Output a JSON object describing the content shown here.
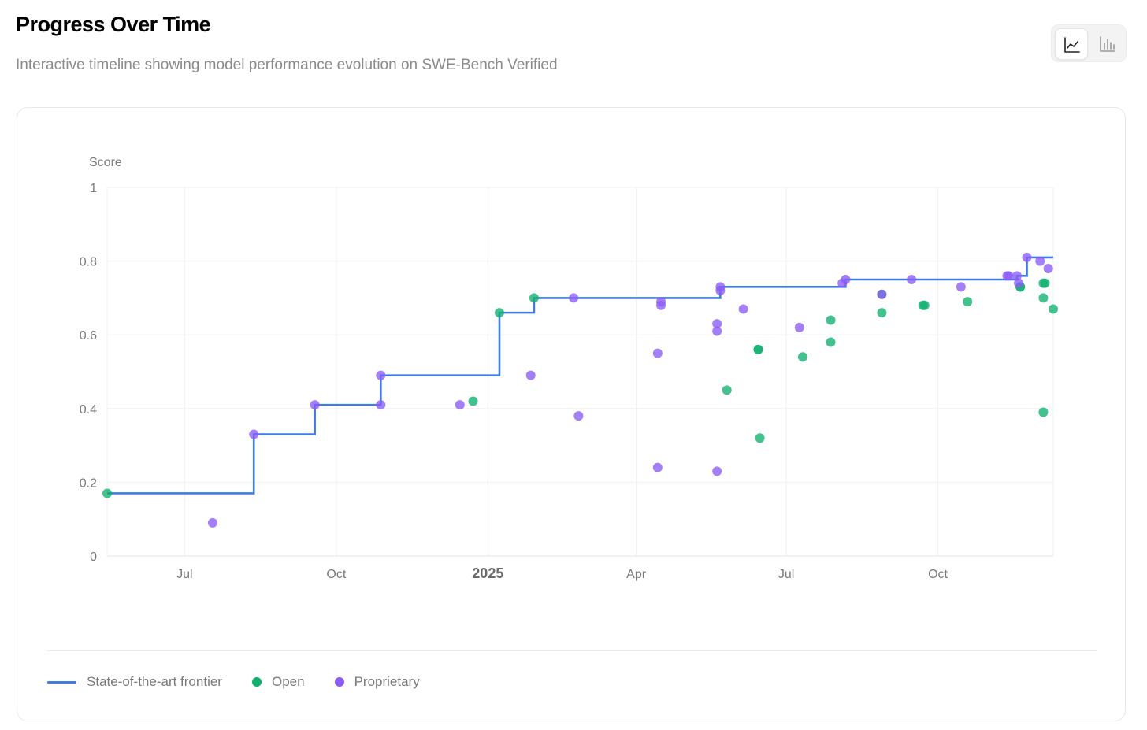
{
  "header": {
    "title": "Progress Over Time",
    "subtitle": "Interactive timeline showing model performance evolution on SWE-Bench Verified"
  },
  "view_toggle": {
    "options": [
      {
        "icon": "line-chart-icon",
        "selected": true
      },
      {
        "icon": "bar-chart-icon",
        "selected": false
      }
    ]
  },
  "colors": {
    "frontier": "#3f7de0",
    "open": "#10b06f",
    "proprietary": "#8b5cf6"
  },
  "legend": {
    "frontier": "State-of-the-art frontier",
    "open": "Open",
    "proprietary": "Proprietary"
  },
  "chart_data": {
    "type": "scatter",
    "ylabel": "Score",
    "ylim": [
      0,
      1
    ],
    "yticks": [
      0,
      0.2,
      0.4,
      0.6,
      0.8,
      1
    ],
    "xlim": [
      "2024-05-15",
      "2025-12-10"
    ],
    "xticks": [
      {
        "date": "2024-07-01",
        "label": "Jul",
        "bold": false
      },
      {
        "date": "2024-10-01",
        "label": "Oct",
        "bold": false
      },
      {
        "date": "2025-01-01",
        "label": "2025",
        "bold": true
      },
      {
        "date": "2025-04-01",
        "label": "Apr",
        "bold": false
      },
      {
        "date": "2025-07-01",
        "label": "Jul",
        "bold": false
      },
      {
        "date": "2025-10-01",
        "label": "Oct",
        "bold": false
      }
    ],
    "grid": true,
    "legend_position": "bottom-left",
    "series": [
      {
        "name": "Open",
        "color_key": "open",
        "points": [
          {
            "x": "2024-05-15",
            "y": 0.17
          },
          {
            "x": "2024-12-23",
            "y": 0.42
          },
          {
            "x": "2025-01-08",
            "y": 0.66
          },
          {
            "x": "2025-01-29",
            "y": 0.7
          },
          {
            "x": "2025-05-26",
            "y": 0.45
          },
          {
            "x": "2025-06-14",
            "y": 0.56
          },
          {
            "x": "2025-06-14",
            "y": 0.56
          },
          {
            "x": "2025-06-15",
            "y": 0.32
          },
          {
            "x": "2025-07-11",
            "y": 0.54
          },
          {
            "x": "2025-07-28",
            "y": 0.64
          },
          {
            "x": "2025-07-28",
            "y": 0.58
          },
          {
            "x": "2025-08-28",
            "y": 0.71
          },
          {
            "x": "2025-08-28",
            "y": 0.66
          },
          {
            "x": "2025-09-22",
            "y": 0.68
          },
          {
            "x": "2025-09-23",
            "y": 0.68
          },
          {
            "x": "2025-10-19",
            "y": 0.69
          },
          {
            "x": "2025-11-20",
            "y": 0.73
          },
          {
            "x": "2025-11-20",
            "y": 0.73
          },
          {
            "x": "2025-12-04",
            "y": 0.74
          },
          {
            "x": "2025-12-04",
            "y": 0.7
          },
          {
            "x": "2025-12-05",
            "y": 0.74
          },
          {
            "x": "2025-12-04",
            "y": 0.39
          },
          {
            "x": "2025-12-10",
            "y": 0.67
          }
        ]
      },
      {
        "name": "Proprietary",
        "color_key": "proprietary",
        "points": [
          {
            "x": "2024-07-18",
            "y": 0.09
          },
          {
            "x": "2024-08-12",
            "y": 0.33
          },
          {
            "x": "2024-09-18",
            "y": 0.41
          },
          {
            "x": "2024-10-28",
            "y": 0.49
          },
          {
            "x": "2024-10-28",
            "y": 0.41
          },
          {
            "x": "2024-12-15",
            "y": 0.41
          },
          {
            "x": "2025-01-27",
            "y": 0.49
          },
          {
            "x": "2025-02-22",
            "y": 0.7
          },
          {
            "x": "2025-02-25",
            "y": 0.38
          },
          {
            "x": "2025-04-14",
            "y": 0.55
          },
          {
            "x": "2025-04-16",
            "y": 0.69
          },
          {
            "x": "2025-04-16",
            "y": 0.68
          },
          {
            "x": "2025-04-14",
            "y": 0.24
          },
          {
            "x": "2025-05-20",
            "y": 0.63
          },
          {
            "x": "2025-05-20",
            "y": 0.61
          },
          {
            "x": "2025-05-20",
            "y": 0.23
          },
          {
            "x": "2025-05-22",
            "y": 0.73
          },
          {
            "x": "2025-05-22",
            "y": 0.72
          },
          {
            "x": "2025-06-05",
            "y": 0.67
          },
          {
            "x": "2025-07-09",
            "y": 0.62
          },
          {
            "x": "2025-08-04",
            "y": 0.74
          },
          {
            "x": "2025-08-06",
            "y": 0.75
          },
          {
            "x": "2025-08-28",
            "y": 0.71
          },
          {
            "x": "2025-09-15",
            "y": 0.75
          },
          {
            "x": "2025-10-15",
            "y": 0.73
          },
          {
            "x": "2025-11-12",
            "y": 0.76
          },
          {
            "x": "2025-11-13",
            "y": 0.76
          },
          {
            "x": "2025-11-18",
            "y": 0.76
          },
          {
            "x": "2025-11-19",
            "y": 0.74
          },
          {
            "x": "2025-11-24",
            "y": 0.81
          },
          {
            "x": "2025-12-02",
            "y": 0.8
          },
          {
            "x": "2025-12-07",
            "y": 0.78
          }
        ]
      },
      {
        "name": "State-of-the-art frontier",
        "color_key": "frontier",
        "kind": "step",
        "points": [
          {
            "x": "2024-05-15",
            "y": 0.17
          },
          {
            "x": "2024-08-12",
            "y": 0.33
          },
          {
            "x": "2024-09-18",
            "y": 0.41
          },
          {
            "x": "2024-10-28",
            "y": 0.49
          },
          {
            "x": "2025-01-08",
            "y": 0.66
          },
          {
            "x": "2025-01-29",
            "y": 0.7
          },
          {
            "x": "2025-05-22",
            "y": 0.73
          },
          {
            "x": "2025-08-06",
            "y": 0.75
          },
          {
            "x": "2025-11-18",
            "y": 0.76
          },
          {
            "x": "2025-11-24",
            "y": 0.81
          },
          {
            "x": "2025-12-10",
            "y": 0.81
          }
        ]
      }
    ]
  }
}
